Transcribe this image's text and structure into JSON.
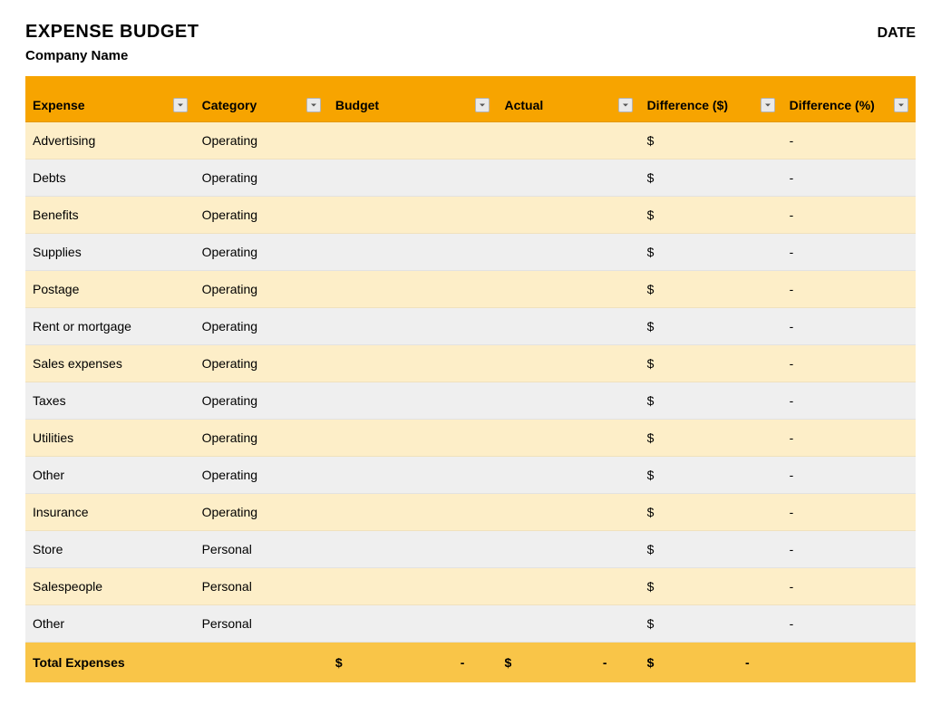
{
  "header": {
    "title": "EXPENSE BUDGET",
    "date_label": "DATE",
    "subtitle": "Company Name"
  },
  "table": {
    "type": "table",
    "header_bg_color": "#f7a400",
    "header_spacer_color": "#f7a400",
    "row_color_a": "#fdeec8",
    "row_color_b": "#efefef",
    "total_row_color": "#f9c548",
    "text_color": "#000000",
    "font_family": "Arial",
    "header_fontsize": 14,
    "body_fontsize": 14,
    "columns": [
      {
        "key": "expense",
        "label": "Expense",
        "filter": true,
        "width_pct": 19
      },
      {
        "key": "category",
        "label": "Category",
        "filter": true,
        "width_pct": 15
      },
      {
        "key": "budget",
        "label": "Budget",
        "filter": true,
        "width_pct": 19
      },
      {
        "key": "actual",
        "label": "Actual",
        "filter": true,
        "width_pct": 16
      },
      {
        "key": "diff_d",
        "label": "Difference ($)",
        "filter": true,
        "width_pct": 16
      },
      {
        "key": "diff_p",
        "label": "Difference (%)",
        "filter": true,
        "width_pct": 15
      }
    ],
    "rows": [
      {
        "expense": "Advertising",
        "category": "Operating",
        "budget": "",
        "actual": "",
        "diff_d": "$",
        "diff_p": "-"
      },
      {
        "expense": "Debts",
        "category": "Operating",
        "budget": "",
        "actual": "",
        "diff_d": "$",
        "diff_p": "-"
      },
      {
        "expense": "Benefits",
        "category": "Operating",
        "budget": "",
        "actual": "",
        "diff_d": "$",
        "diff_p": "-"
      },
      {
        "expense": "Supplies",
        "category": "Operating",
        "budget": "",
        "actual": "",
        "diff_d": "$",
        "diff_p": "-"
      },
      {
        "expense": "Postage",
        "category": "Operating",
        "budget": "",
        "actual": "",
        "diff_d": "$",
        "diff_p": "-"
      },
      {
        "expense": "Rent or mortgage",
        "category": "Operating",
        "budget": "",
        "actual": "",
        "diff_d": "$",
        "diff_p": "-"
      },
      {
        "expense": "Sales expenses",
        "category": "Operating",
        "budget": "",
        "actual": "",
        "diff_d": "$",
        "diff_p": "-"
      },
      {
        "expense": "Taxes",
        "category": "Operating",
        "budget": "",
        "actual": "",
        "diff_d": "$",
        "diff_p": "-"
      },
      {
        "expense": "Utilities",
        "category": "Operating",
        "budget": "",
        "actual": "",
        "diff_d": "$",
        "diff_p": "-"
      },
      {
        "expense": "Other",
        "category": "Operating",
        "budget": "",
        "actual": "",
        "diff_d": "$",
        "diff_p": "-"
      },
      {
        "expense": "Insurance",
        "category": "Operating",
        "budget": "",
        "actual": "",
        "diff_d": "$",
        "diff_p": "-"
      },
      {
        "expense": "Store",
        "category": "Personal",
        "budget": "",
        "actual": "",
        "diff_d": "$",
        "diff_p": "-"
      },
      {
        "expense": "Salespeople",
        "category": "Personal",
        "budget": "",
        "actual": "",
        "diff_d": "$",
        "diff_p": "-"
      },
      {
        "expense": "Other",
        "category": "Personal",
        "budget": "",
        "actual": "",
        "diff_d": "$",
        "diff_p": "-"
      }
    ],
    "total": {
      "label": "Total Expenses",
      "budget_symbol": "$",
      "budget_value": "-",
      "actual_symbol": "$",
      "actual_value": "-",
      "diff_d_symbol": "$",
      "diff_d_value": "-",
      "diff_p": ""
    }
  }
}
